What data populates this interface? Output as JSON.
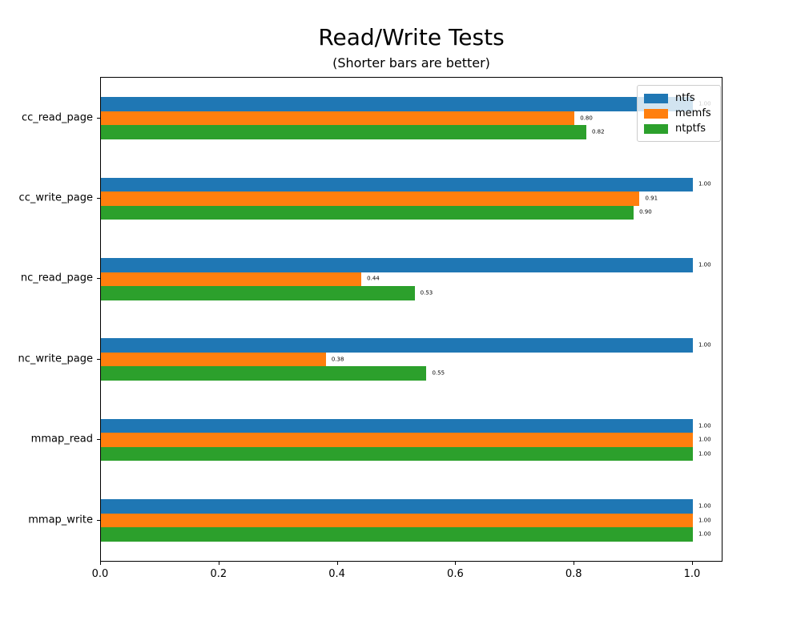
{
  "chart_data": {
    "type": "bar",
    "orientation": "horizontal",
    "title": "Read/Write Tests",
    "subtitle": "(Shorter bars are better)",
    "categories": [
      "cc_read_page",
      "cc_write_page",
      "nc_read_page",
      "nc_write_page",
      "mmap_read",
      "mmap_write"
    ],
    "series": [
      {
        "name": "ntfs",
        "color": "#1f77b4",
        "values": [
          1.0,
          1.0,
          1.0,
          1.0,
          1.0,
          1.0
        ]
      },
      {
        "name": "memfs",
        "color": "#ff7f0e",
        "values": [
          0.8,
          0.91,
          0.44,
          0.38,
          1.0,
          1.0
        ]
      },
      {
        "name": "ntptfs",
        "color": "#2ca02c",
        "values": [
          0.82,
          0.9,
          0.53,
          0.55,
          1.0,
          1.0
        ]
      }
    ],
    "xlim": [
      0.0,
      1.05
    ],
    "xticks": [
      0.0,
      0.2,
      0.4,
      0.6,
      0.8,
      1.0
    ],
    "value_label_decimals": 2,
    "bar_labels": true,
    "grid": false,
    "legend_position": "upper right",
    "axis_color": "#000000",
    "legend_border_color": "#cccccc"
  }
}
